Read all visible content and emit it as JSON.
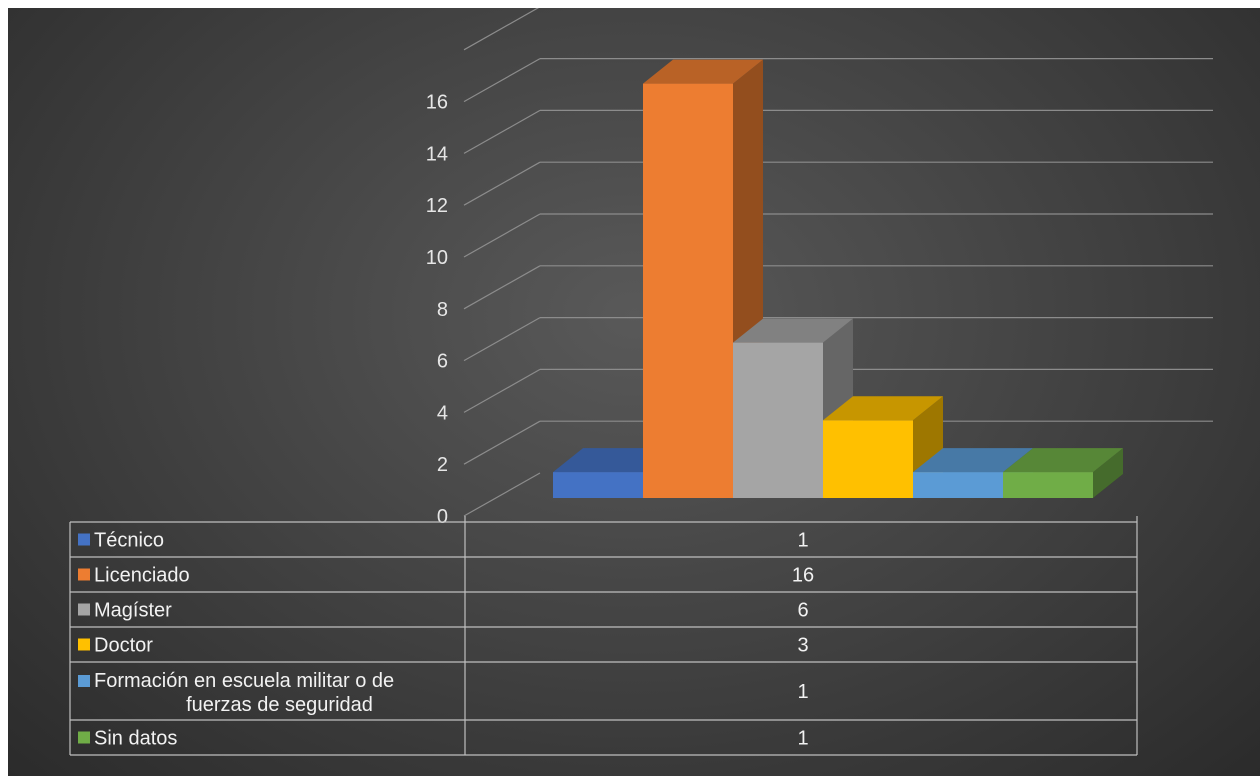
{
  "chart_data": {
    "type": "bar",
    "variant": "3d-column-with-data-table",
    "categories": [
      "Técnico",
      "Licenciado",
      "Magíster",
      "Doctor",
      "Formación en escuela militar o de fuerzas de seguridad",
      "Sin datos"
    ],
    "category_lines": [
      [
        "Técnico"
      ],
      [
        "Licenciado"
      ],
      [
        "Magíster"
      ],
      [
        "Doctor"
      ],
      [
        "Formación en escuela militar o de",
        "fuerzas de seguridad"
      ],
      [
        "Sin datos"
      ]
    ],
    "values": [
      1,
      16,
      6,
      3,
      1,
      1
    ],
    "colors": [
      "#4472c4",
      "#ed7d31",
      "#a5a5a5",
      "#ffc000",
      "#5b9bd5",
      "#70ad47"
    ],
    "ylim": [
      0,
      16
    ],
    "yticks": [
      0,
      2,
      4,
      6,
      8,
      10,
      12,
      14,
      16
    ],
    "grid": true,
    "title": "",
    "xlabel": "",
    "ylabel": "",
    "legend": "data-table-below"
  }
}
